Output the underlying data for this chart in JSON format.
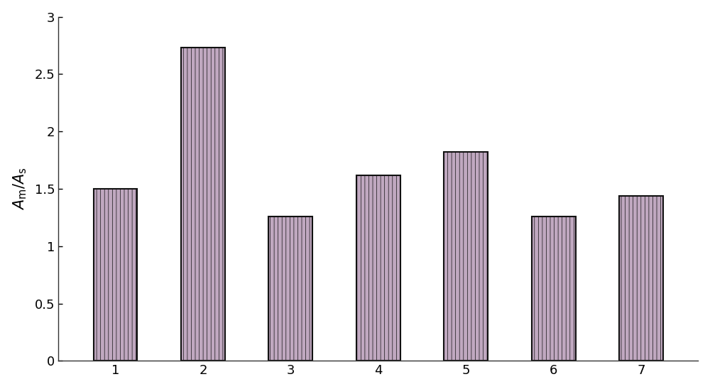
{
  "categories": [
    "1",
    "2",
    "3",
    "4",
    "5",
    "6",
    "7"
  ],
  "values": [
    1.5,
    2.73,
    1.26,
    1.62,
    1.82,
    1.26,
    1.44
  ],
  "bar_facecolor": "#c0a8c0",
  "bar_edgecolor": "#111111",
  "hatch_pattern": "|||",
  "hatch_color": "#6a9a6a",
  "hatch_linewidth": 0.5,
  "ylabel": "$A_{\\rm m}/A_{\\rm s}$",
  "ylim": [
    0,
    3.0
  ],
  "yticks": [
    0,
    0.5,
    1.0,
    1.5,
    2.0,
    2.5,
    3.0
  ],
  "ytick_labels": [
    "0",
    "0.5",
    "1",
    "1.5",
    "2",
    "2.5",
    "3"
  ],
  "background_color": "#ffffff",
  "bar_width": 0.5,
  "ylabel_fontsize": 15,
  "tick_fontsize": 13,
  "spine_color": "#333333",
  "bar_linewidth": 1.5,
  "figsize": [
    10.0,
    5.48
  ],
  "dpi": 100
}
